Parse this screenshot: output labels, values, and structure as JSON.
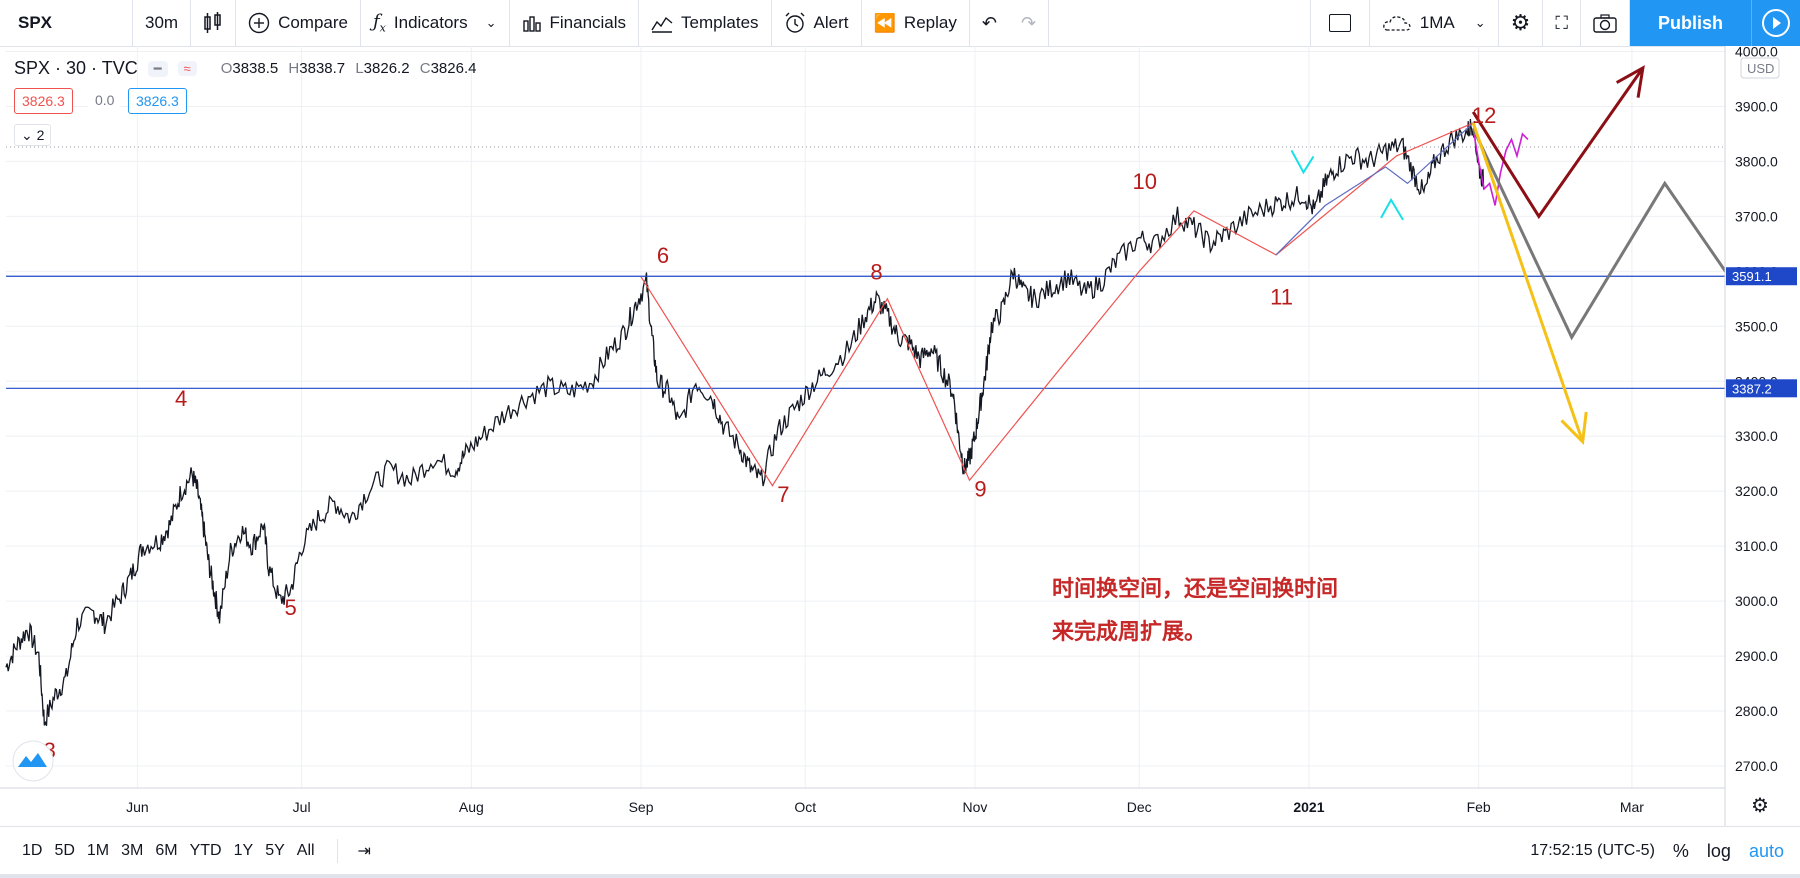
{
  "toolbar": {
    "symbol": "SPX",
    "interval": "30m",
    "compare": "Compare",
    "indicators": "Indicators",
    "financials": "Financials",
    "templates": "Templates",
    "alert": "Alert",
    "replay": "Replay",
    "ma": "1MA",
    "publish": "Publish"
  },
  "legend": {
    "title": "SPX · 30 · TVC",
    "o_label": "O",
    "o": "3838.5",
    "h_label": "H",
    "h": "3838.7",
    "l_label": "L",
    "l": "3826.2",
    "c_label": "C",
    "c": "3826.4",
    "bid": "3826.3",
    "spread": "0.0",
    "ask": "3826.3",
    "collapse": "2"
  },
  "bottom": {
    "ranges": [
      "1D",
      "5D",
      "1M",
      "3M",
      "6M",
      "YTD",
      "1Y",
      "5Y",
      "All"
    ],
    "time": "17:52:15 (UTC-5)",
    "pct": "%",
    "log": "log",
    "auto": "auto"
  },
  "colors": {
    "accent": "#2196f3",
    "wave_label": "#b71c1c",
    "hline": "#1e48c8",
    "zigzag": "#ef5350",
    "yellow_arrow": "#f5c116",
    "darkred_arrow": "#8b0f14",
    "gray_path": "#787878",
    "cyan_arrow": "#19e0e6",
    "magenta": "#d01dd8"
  },
  "chart_data": {
    "type": "line",
    "title": "SPX · 30 · TVC",
    "currency": "USD",
    "y_ticks": [
      2700.0,
      2800.0,
      2900.0,
      3000.0,
      3100.0,
      3200.0,
      3300.0,
      3400.0,
      3500.0,
      3600.0,
      3700.0,
      3800.0,
      3900.0,
      4000.0
    ],
    "ylim": [
      2660,
      4010
    ],
    "x_ticks": [
      "Jun",
      "Jul",
      "Aug",
      "Sep",
      "Oct",
      "Nov",
      "Dec",
      "2021",
      "Feb",
      "Mar"
    ],
    "x_tick_days": [
      0,
      30,
      61,
      92,
      122,
      153,
      183,
      214,
      245,
      273
    ],
    "xlim_days": [
      -24,
      290
    ],
    "price_path": [
      [
        -24,
        2880
      ],
      [
        -22,
        2920
      ],
      [
        -20,
        2950
      ],
      [
        -18,
        2900
      ],
      [
        -17,
        2780
      ],
      [
        -15,
        2830
      ],
      [
        -13,
        2860
      ],
      [
        -11,
        2960
      ],
      [
        -8,
        2980
      ],
      [
        -6,
        2960
      ],
      [
        -3,
        3010
      ],
      [
        -1,
        3050
      ],
      [
        1,
        3100
      ],
      [
        4,
        3110
      ],
      [
        6,
        3140
      ],
      [
        8,
        3200
      ],
      [
        10,
        3230
      ],
      [
        11,
        3200
      ],
      [
        12,
        3140
      ],
      [
        13,
        3070
      ],
      [
        14,
        3020
      ],
      [
        15,
        2970
      ],
      [
        17,
        3090
      ],
      [
        19,
        3130
      ],
      [
        21,
        3100
      ],
      [
        23,
        3140
      ],
      [
        24,
        3060
      ],
      [
        26,
        3000
      ],
      [
        28,
        3020
      ],
      [
        30,
        3100
      ],
      [
        33,
        3150
      ],
      [
        36,
        3180
      ],
      [
        39,
        3150
      ],
      [
        42,
        3200
      ],
      [
        46,
        3240
      ],
      [
        50,
        3220
      ],
      [
        54,
        3260
      ],
      [
        58,
        3240
      ],
      [
        60,
        3270
      ],
      [
        63,
        3300
      ],
      [
        67,
        3340
      ],
      [
        71,
        3370
      ],
      [
        75,
        3390
      ],
      [
        79,
        3380
      ],
      [
        83,
        3400
      ],
      [
        86,
        3450
      ],
      [
        89,
        3490
      ],
      [
        91,
        3540
      ],
      [
        93,
        3580
      ],
      [
        94,
        3480
      ],
      [
        95,
        3400
      ],
      [
        97,
        3380
      ],
      [
        99,
        3320
      ],
      [
        102,
        3400
      ],
      [
        105,
        3370
      ],
      [
        107,
        3320
      ],
      [
        110,
        3280
      ],
      [
        112,
        3240
      ],
      [
        114,
        3220
      ],
      [
        117,
        3310
      ],
      [
        120,
        3350
      ],
      [
        123,
        3390
      ],
      [
        126,
        3420
      ],
      [
        130,
        3460
      ],
      [
        133,
        3520
      ],
      [
        135,
        3550
      ],
      [
        137,
        3520
      ],
      [
        139,
        3480
      ],
      [
        141,
        3470
      ],
      [
        143,
        3440
      ],
      [
        145,
        3460
      ],
      [
        147,
        3420
      ],
      [
        149,
        3380
      ],
      [
        150,
        3300
      ],
      [
        151,
        3240
      ],
      [
        152,
        3260
      ],
      [
        153,
        3300
      ],
      [
        154,
        3360
      ],
      [
        155,
        3420
      ],
      [
        156,
        3500
      ],
      [
        158,
        3530
      ],
      [
        160,
        3600
      ],
      [
        162,
        3560
      ],
      [
        164,
        3550
      ],
      [
        167,
        3570
      ],
      [
        170,
        3590
      ],
      [
        173,
        3560
      ],
      [
        176,
        3580
      ],
      [
        179,
        3620
      ],
      [
        183,
        3660
      ],
      [
        186,
        3650
      ],
      [
        190,
        3700
      ],
      [
        193,
        3680
      ],
      [
        196,
        3650
      ],
      [
        199,
        3670
      ],
      [
        203,
        3700
      ],
      [
        207,
        3720
      ],
      [
        210,
        3730
      ],
      [
        213,
        3740
      ],
      [
        215,
        3710
      ],
      [
        217,
        3760
      ],
      [
        219,
        3790
      ],
      [
        222,
        3810
      ],
      [
        225,
        3800
      ],
      [
        228,
        3820
      ],
      [
        231,
        3830
      ],
      [
        233,
        3780
      ],
      [
        235,
        3740
      ],
      [
        237,
        3800
      ],
      [
        240,
        3840
      ],
      [
        243,
        3855
      ],
      [
        244,
        3870
      ],
      [
        245,
        3790
      ],
      [
        246,
        3760
      ]
    ],
    "magenta_path": [
      [
        244,
        3860
      ],
      [
        245,
        3800
      ],
      [
        246,
        3750
      ],
      [
        247,
        3760
      ],
      [
        248,
        3720
      ],
      [
        249,
        3780
      ],
      [
        250,
        3820
      ],
      [
        251,
        3840
      ],
      [
        252,
        3810
      ],
      [
        253,
        3850
      ],
      [
        254,
        3840
      ]
    ],
    "hlines": [
      {
        "price": 3591.1,
        "label": "3591.1"
      },
      {
        "price": 3387.2,
        "label": "3387.2"
      }
    ],
    "dotted_last": 3826.3,
    "zigzag": [
      [
        92,
        3590
      ],
      [
        116,
        3210
      ],
      [
        137,
        3550
      ],
      [
        152,
        3220
      ],
      [
        183,
        3600
      ],
      [
        193,
        3710
      ],
      [
        208,
        3630
      ],
      [
        230,
        3810
      ],
      [
        244,
        3870
      ]
    ],
    "blue_diag": [
      [
        208,
        3630
      ],
      [
        217,
        3720
      ],
      [
        228,
        3790
      ],
      [
        232,
        3760
      ],
      [
        244,
        3870
      ]
    ],
    "yellow_arrow": [
      [
        244,
        3870
      ],
      [
        264,
        3290
      ]
    ],
    "darkred_arrow": [
      [
        244,
        3890
      ],
      [
        256,
        3700
      ],
      [
        275,
        3970
      ]
    ],
    "gray_path": [
      [
        244,
        3860
      ],
      [
        262,
        3480
      ],
      [
        279,
        3760
      ],
      [
        297,
        3500
      ],
      [
        314,
        3770
      ],
      [
        327,
        3540
      ]
    ],
    "wave_labels": [
      {
        "text": "3",
        "d": -16,
        "p": 2715
      },
      {
        "text": "4",
        "d": 8,
        "p": 3355
      },
      {
        "text": "5",
        "d": 28,
        "p": 2975
      },
      {
        "text": "6",
        "d": 96,
        "p": 3615
      },
      {
        "text": "7",
        "d": 118,
        "p": 3180
      },
      {
        "text": "8",
        "d": 135,
        "p": 3585
      },
      {
        "text": "9",
        "d": 154,
        "p": 3190
      },
      {
        "text": "10",
        "d": 184,
        "p": 3750
      },
      {
        "text": "11",
        "d": 209,
        "p": 3540
      },
      {
        "text": "12",
        "d": 246,
        "p": 3870
      }
    ],
    "annotation": [
      "时间换空间，还是空间换时间",
      "来完成周扩展。"
    ]
  }
}
